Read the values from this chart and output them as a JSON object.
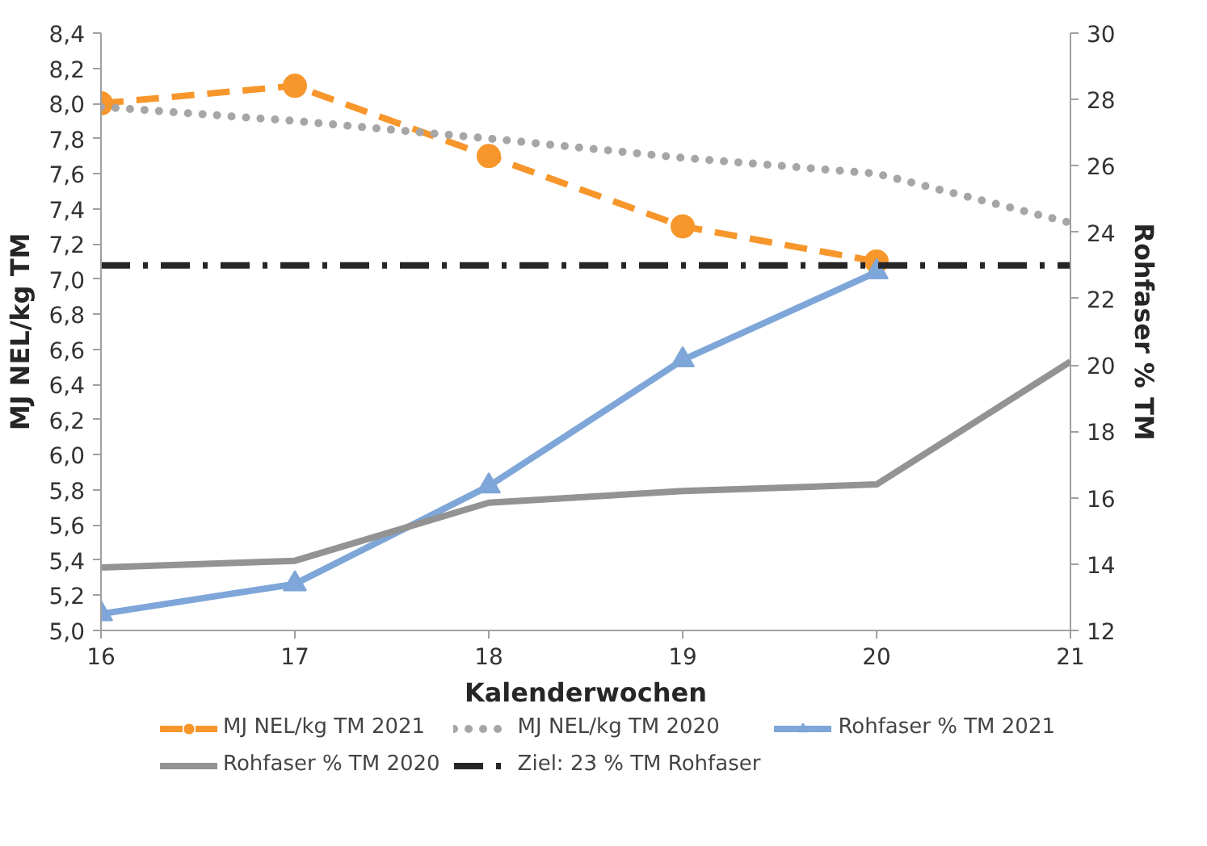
{
  "chart_data": {
    "type": "line",
    "xlabel": "Kalenderwochen",
    "ylabel": "MJ NEL/kg TM",
    "y2label": "Rohfaser % TM",
    "x": [
      16,
      17,
      18,
      19,
      20,
      21
    ],
    "series": [
      {
        "name": "MJ NEL/kg TM 2021",
        "color": "#f7962b",
        "values": [
          8.0,
          8.1,
          7.7,
          7.3,
          7.1,
          null
        ],
        "marker": "circle",
        "line_style": "dashed"
      },
      {
        "name": "MJ NEL/kg TM 2020",
        "color": "#a6a6a6",
        "values": [
          7.98,
          7.9,
          7.8,
          7.69,
          7.6,
          7.32
        ],
        "marker": "none",
        "line_style": "dotted"
      },
      {
        "name": "Rohfaser % TM 2021",
        "color": "#7ea6d8",
        "values": [
          12.5,
          13.4,
          16.35,
          20.15,
          22.8,
          null
        ],
        "marker": "triangle",
        "line_style": "solid",
        "axis": "y2"
      },
      {
        "name": "Rohfaser % TM 2020",
        "color": "#939393",
        "values": [
          13.9,
          14.1,
          15.85,
          16.2,
          16.4,
          20.1
        ],
        "marker": "none",
        "line_style": "solid",
        "axis": "y2"
      }
    ],
    "ref_lines": [
      {
        "axis": "y2",
        "value": 23,
        "label": "Ziel: 23 % TM Rohfaser",
        "color": "#262626",
        "line_style": "dashdot"
      }
    ],
    "xlim": [
      16,
      21
    ],
    "xticks": [
      16,
      17,
      18,
      19,
      20,
      21
    ],
    "ylim": [
      5.0,
      8.4
    ],
    "yticks": [
      {
        "value": 5.0,
        "label": "5,0"
      },
      {
        "value": 5.2,
        "label": "5,2"
      },
      {
        "value": 5.4,
        "label": "5,4"
      },
      {
        "value": 5.6,
        "label": "5,6"
      },
      {
        "value": 5.8,
        "label": "5,8"
      },
      {
        "value": 6.0,
        "label": "6,0"
      },
      {
        "value": 6.2,
        "label": "6,2"
      },
      {
        "value": 6.4,
        "label": "6,4"
      },
      {
        "value": 6.6,
        "label": "6,6"
      },
      {
        "value": 6.8,
        "label": "6,8"
      },
      {
        "value": 7.0,
        "label": "7,0"
      },
      {
        "value": 7.2,
        "label": "7,2"
      },
      {
        "value": 7.4,
        "label": "7,4"
      },
      {
        "value": 7.6,
        "label": "7,6"
      },
      {
        "value": 7.8,
        "label": "7,8"
      },
      {
        "value": 8.0,
        "label": "8,0"
      },
      {
        "value": 8.2,
        "label": "8,2"
      },
      {
        "value": 8.4,
        "label": "8,4"
      }
    ],
    "y2lim": [
      12,
      30
    ],
    "y2ticks": [
      12,
      14,
      16,
      18,
      20,
      22,
      24,
      26,
      28,
      30
    ],
    "grid": false,
    "legend": "bottom"
  }
}
